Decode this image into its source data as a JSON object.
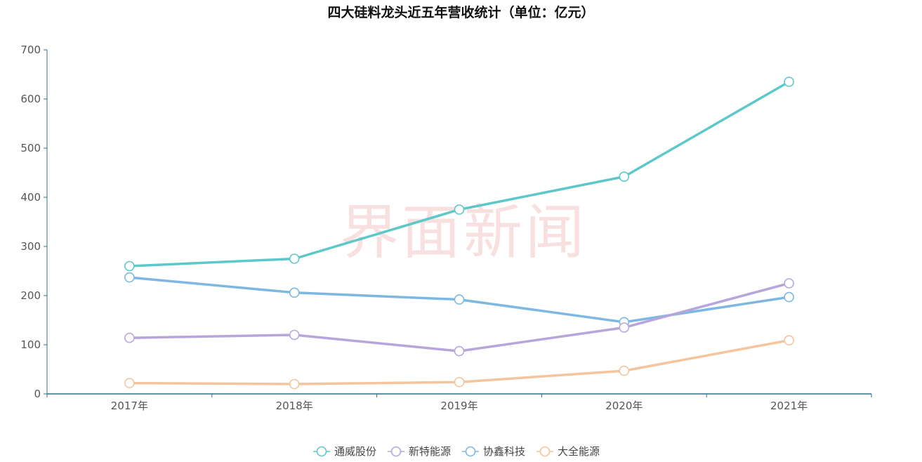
{
  "chart_data": {
    "type": "line",
    "title": "四大硅料龙头近五年营收统计（单位：亿元）",
    "watermark": "界面新闻",
    "categories": [
      "2017年",
      "2018年",
      "2019年",
      "2020年",
      "2021年"
    ],
    "ylim": [
      0,
      700
    ],
    "yticks": [
      0,
      100,
      200,
      300,
      400,
      500,
      600,
      700
    ],
    "grid": false,
    "legend_position": "bottom-center",
    "series": [
      {
        "name": "通威股份",
        "color": "#5cc8c9",
        "values": [
          260,
          275,
          375,
          442,
          635
        ]
      },
      {
        "name": "新特能源",
        "color": "#b7a6dc",
        "values": [
          114,
          120,
          87,
          135,
          225
        ]
      },
      {
        "name": "协鑫科技",
        "color": "#7cb8e2",
        "values": [
          237,
          206,
          192,
          146,
          197
        ]
      },
      {
        "name": "大全能源",
        "color": "#f4c59c",
        "values": [
          22,
          20,
          24,
          47,
          109
        ]
      }
    ],
    "axis_color": "#2f6f8a"
  }
}
